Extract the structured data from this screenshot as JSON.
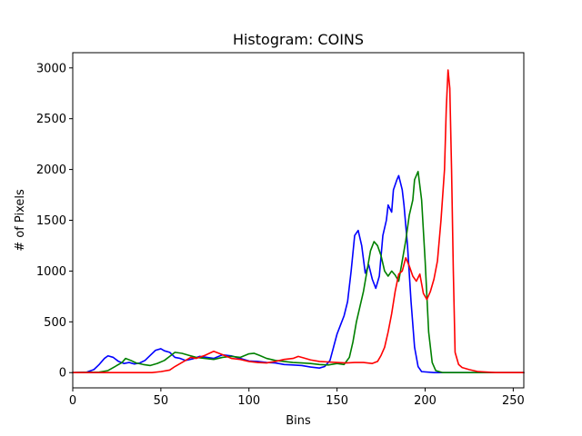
{
  "chart_data": {
    "type": "line",
    "title": "Histogram: COINS",
    "xlabel": "Bins",
    "ylabel": "# of Pixels",
    "xlim": [
      0,
      256
    ],
    "ylim": [
      -150,
      3150
    ],
    "xticks": [
      0,
      50,
      100,
      150,
      200,
      250
    ],
    "yticks": [
      0,
      500,
      1000,
      1500,
      2000,
      2500,
      3000
    ],
    "grid": false,
    "legend": "none",
    "series": [
      {
        "color": "#0000ff",
        "points": [
          [
            0,
            0
          ],
          [
            8,
            5
          ],
          [
            12,
            30
          ],
          [
            15,
            80
          ],
          [
            18,
            140
          ],
          [
            20,
            165
          ],
          [
            23,
            150
          ],
          [
            26,
            110
          ],
          [
            29,
            90
          ],
          [
            32,
            100
          ],
          [
            35,
            85
          ],
          [
            38,
            95
          ],
          [
            41,
            120
          ],
          [
            44,
            170
          ],
          [
            47,
            220
          ],
          [
            50,
            235
          ],
          [
            52,
            215
          ],
          [
            55,
            200
          ],
          [
            58,
            150
          ],
          [
            61,
            140
          ],
          [
            64,
            120
          ],
          [
            68,
            135
          ],
          [
            72,
            160
          ],
          [
            76,
            150
          ],
          [
            80,
            140
          ],
          [
            85,
            175
          ],
          [
            90,
            165
          ],
          [
            95,
            140
          ],
          [
            100,
            115
          ],
          [
            105,
            110
          ],
          [
            110,
            100
          ],
          [
            115,
            95
          ],
          [
            120,
            80
          ],
          [
            125,
            75
          ],
          [
            130,
            70
          ],
          [
            135,
            55
          ],
          [
            140,
            45
          ],
          [
            143,
            60
          ],
          [
            146,
            120
          ],
          [
            148,
            250
          ],
          [
            150,
            380
          ],
          [
            152,
            470
          ],
          [
            154,
            560
          ],
          [
            156,
            700
          ],
          [
            158,
            1000
          ],
          [
            160,
            1350
          ],
          [
            162,
            1400
          ],
          [
            164,
            1250
          ],
          [
            166,
            980
          ],
          [
            168,
            1060
          ],
          [
            170,
            920
          ],
          [
            172,
            830
          ],
          [
            174,
            950
          ],
          [
            176,
            1350
          ],
          [
            178,
            1500
          ],
          [
            179,
            1650
          ],
          [
            181,
            1580
          ],
          [
            182,
            1800
          ],
          [
            184,
            1900
          ],
          [
            185,
            1940
          ],
          [
            187,
            1800
          ],
          [
            188,
            1650
          ],
          [
            190,
            1250
          ],
          [
            192,
            700
          ],
          [
            194,
            250
          ],
          [
            196,
            60
          ],
          [
            198,
            10
          ],
          [
            205,
            0
          ],
          [
            256,
            0
          ]
        ]
      },
      {
        "color": "#008000",
        "points": [
          [
            0,
            0
          ],
          [
            15,
            5
          ],
          [
            20,
            20
          ],
          [
            24,
            60
          ],
          [
            28,
            100
          ],
          [
            30,
            140
          ],
          [
            33,
            120
          ],
          [
            36,
            95
          ],
          [
            40,
            80
          ],
          [
            44,
            70
          ],
          [
            48,
            90
          ],
          [
            52,
            120
          ],
          [
            55,
            160
          ],
          [
            58,
            200
          ],
          [
            62,
            190
          ],
          [
            66,
            170
          ],
          [
            70,
            150
          ],
          [
            75,
            140
          ],
          [
            80,
            130
          ],
          [
            85,
            150
          ],
          [
            90,
            160
          ],
          [
            95,
            150
          ],
          [
            100,
            185
          ],
          [
            103,
            190
          ],
          [
            106,
            170
          ],
          [
            110,
            140
          ],
          [
            115,
            120
          ],
          [
            120,
            110
          ],
          [
            125,
            100
          ],
          [
            130,
            95
          ],
          [
            135,
            90
          ],
          [
            140,
            80
          ],
          [
            145,
            75
          ],
          [
            150,
            90
          ],
          [
            154,
            80
          ],
          [
            157,
            150
          ],
          [
            159,
            300
          ],
          [
            161,
            500
          ],
          [
            163,
            650
          ],
          [
            165,
            800
          ],
          [
            167,
            1000
          ],
          [
            169,
            1200
          ],
          [
            171,
            1290
          ],
          [
            173,
            1250
          ],
          [
            175,
            1150
          ],
          [
            177,
            1000
          ],
          [
            179,
            950
          ],
          [
            181,
            1000
          ],
          [
            183,
            960
          ],
          [
            185,
            900
          ],
          [
            187,
            1100
          ],
          [
            189,
            1300
          ],
          [
            191,
            1550
          ],
          [
            193,
            1700
          ],
          [
            194,
            1900
          ],
          [
            196,
            1980
          ],
          [
            198,
            1700
          ],
          [
            200,
            1100
          ],
          [
            202,
            400
          ],
          [
            204,
            100
          ],
          [
            206,
            20
          ],
          [
            210,
            0
          ],
          [
            256,
            0
          ]
        ]
      },
      {
        "color": "#ff0000",
        "points": [
          [
            0,
            0
          ],
          [
            45,
            0
          ],
          [
            50,
            10
          ],
          [
            55,
            25
          ],
          [
            58,
            60
          ],
          [
            61,
            90
          ],
          [
            64,
            120
          ],
          [
            67,
            150
          ],
          [
            70,
            140
          ],
          [
            75,
            170
          ],
          [
            80,
            210
          ],
          [
            83,
            190
          ],
          [
            86,
            170
          ],
          [
            90,
            140
          ],
          [
            95,
            130
          ],
          [
            100,
            110
          ],
          [
            105,
            100
          ],
          [
            110,
            95
          ],
          [
            115,
            110
          ],
          [
            120,
            130
          ],
          [
            125,
            140
          ],
          [
            128,
            160
          ],
          [
            131,
            145
          ],
          [
            135,
            125
          ],
          [
            140,
            110
          ],
          [
            145,
            105
          ],
          [
            150,
            100
          ],
          [
            155,
            95
          ],
          [
            160,
            100
          ],
          [
            165,
            100
          ],
          [
            170,
            90
          ],
          [
            173,
            110
          ],
          [
            175,
            170
          ],
          [
            177,
            250
          ],
          [
            179,
            400
          ],
          [
            181,
            580
          ],
          [
            183,
            800
          ],
          [
            185,
            970
          ],
          [
            187,
            1000
          ],
          [
            189,
            1130
          ],
          [
            191,
            1050
          ],
          [
            193,
            950
          ],
          [
            195,
            900
          ],
          [
            197,
            970
          ],
          [
            199,
            780
          ],
          [
            201,
            720
          ],
          [
            203,
            800
          ],
          [
            205,
            920
          ],
          [
            207,
            1100
          ],
          [
            209,
            1500
          ],
          [
            211,
            2000
          ],
          [
            212,
            2600
          ],
          [
            213,
            2980
          ],
          [
            214,
            2800
          ],
          [
            215,
            2000
          ],
          [
            216,
            1000
          ],
          [
            217,
            200
          ],
          [
            219,
            80
          ],
          [
            221,
            50
          ],
          [
            225,
            30
          ],
          [
            230,
            10
          ],
          [
            240,
            0
          ],
          [
            256,
            0
          ]
        ]
      }
    ]
  }
}
